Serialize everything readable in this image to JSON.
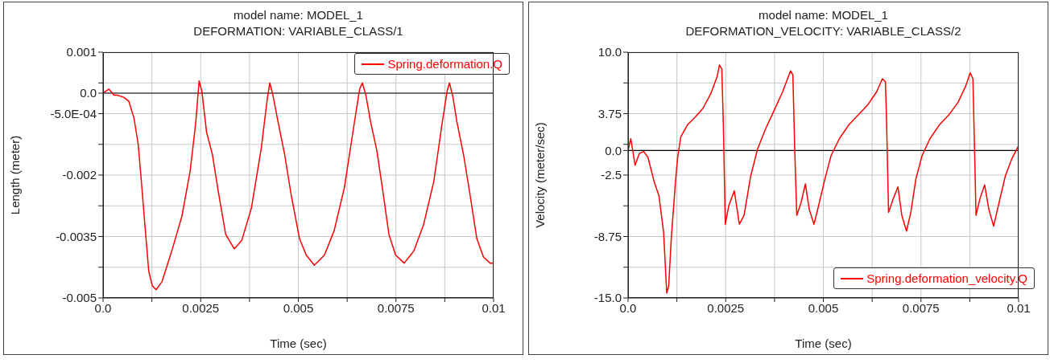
{
  "chart_data": [
    {
      "type": "line",
      "title": "model name: MODEL_1",
      "subtitle": "DEFORMATION: VARIABLE_CLASS/1",
      "xlabel": "Time (sec)",
      "ylabel": "Length (meter)",
      "xlim": [
        0,
        0.01
      ],
      "xticks": [
        {
          "value": 0,
          "label": "0.0"
        },
        {
          "value": 0.00125,
          "label": null
        },
        0.0025,
        {
          "value": 0.00375,
          "label": null
        },
        0.005,
        {
          "value": 0.00625,
          "label": null
        },
        0.0075,
        {
          "value": 0.00875,
          "label": null
        },
        0.01
      ],
      "ylim": [
        -0.005,
        0.001
      ],
      "yticks": [
        -0.005,
        {
          "value": -0.00425,
          "label": null
        },
        -0.0035,
        {
          "value": -0.00275,
          "label": null
        },
        -0.002,
        {
          "value": -0.00125,
          "label": null
        },
        {
          "value": -0.0005,
          "label": "-5.0E-04"
        },
        {
          "value": 0,
          "label": "0.0"
        },
        {
          "value": 0.00025,
          "label": null
        },
        0.001
      ],
      "grid": true,
      "legend": "top right",
      "marker": "none",
      "line_style": "solid",
      "ref_lines": [
        {
          "axis": "y",
          "value": 0,
          "color": "#000000"
        }
      ],
      "series": [
        {
          "name": "Spring.deformation.Q",
          "color": "#ff0000",
          "x": [
            0,
            0.00015,
            0.00028,
            0.00036,
            0.00053,
            0.00066,
            0.00079,
            0.0009,
            0.00098,
            0.00107,
            0.00117,
            0.00126,
            0.00136,
            0.00151,
            0.00176,
            0.00202,
            0.00223,
            0.00237,
            0.00246,
            0.00253,
            0.00265,
            0.0028,
            0.00295,
            0.00314,
            0.00336,
            0.00355,
            0.0038,
            0.00405,
            0.00421,
            0.00427,
            0.00435,
            0.00446,
            0.00465,
            0.00482,
            0.00503,
            0.0052,
            0.00541,
            0.00567,
            0.00592,
            0.00618,
            0.00643,
            0.00657,
            0.00664,
            0.00673,
            0.00685,
            0.00701,
            0.00715,
            0.00732,
            0.00749,
            0.00771,
            0.00796,
            0.00821,
            0.00847,
            0.00868,
            0.00881,
            0.00887,
            0.00896,
            0.00906,
            0.00923,
            0.0094,
            0.00957,
            0.00974,
            0.00991,
            0.01
          ],
          "values": [
            0,
            0.0001,
            -5e-05,
            -5e-05,
            -0.0001,
            -0.0002,
            -0.0006,
            -0.00125,
            -0.00215,
            -0.0032,
            -0.00435,
            -0.0047,
            -0.0048,
            -0.0046,
            -0.00385,
            -0.003,
            -0.0019,
            -0.00075,
            0.0003,
            5e-05,
            -0.00095,
            -0.0015,
            -0.0024,
            -0.00345,
            -0.0038,
            -0.0036,
            -0.0028,
            -0.00135,
            -0.0001,
            0.00025,
            -5e-05,
            -0.0006,
            -0.0015,
            -0.0025,
            -0.00355,
            -0.00395,
            -0.0042,
            -0.00395,
            -0.00335,
            -0.0023,
            -0.00075,
            0.0001,
            0.00025,
            -5e-05,
            -0.0007,
            -0.0014,
            -0.0023,
            -0.00345,
            -0.00395,
            -0.00415,
            -0.00385,
            -0.0032,
            -0.00215,
            -0.00075,
            5e-05,
            0.00025,
            -0.0001,
            -0.0007,
            -0.0015,
            -0.0025,
            -0.00355,
            -0.004,
            -0.00415,
            -0.00415
          ]
        }
      ]
    },
    {
      "type": "line",
      "title": "model name: MODEL_1",
      "subtitle": "DEFORMATION_VELOCITY: VARIABLE_CLASS/2",
      "xlabel": "Time (sec)",
      "ylabel": "Velocity (meter/sec)",
      "xlim": [
        0,
        0.01
      ],
      "xticks": [
        {
          "value": 0,
          "label": "0.0"
        },
        {
          "value": 0.00125,
          "label": null
        },
        0.0025,
        {
          "value": 0.00375,
          "label": null
        },
        0.005,
        {
          "value": 0.00625,
          "label": null
        },
        0.0075,
        {
          "value": 0.00875,
          "label": null
        },
        0.01
      ],
      "ylim": [
        -15,
        10
      ],
      "yticks": [
        {
          "value": -15,
          "label": "-15.0"
        },
        {
          "value": -11.875,
          "label": null
        },
        -8.75,
        {
          "value": -5.625,
          "label": null
        },
        -2.5,
        {
          "value": 0,
          "label": "0.0"
        },
        {
          "value": 0.625,
          "label": null
        },
        3.75,
        {
          "value": 6.875,
          "label": null
        },
        {
          "value": 10,
          "label": "10.0"
        }
      ],
      "grid": true,
      "legend": "bottom right",
      "marker": "none",
      "line_style": "solid",
      "ref_lines": [
        {
          "axis": "y",
          "value": 0,
          "color": "#000000"
        }
      ],
      "series": [
        {
          "name": "Spring.deformation_velocity.Q",
          "color": "#ff0000",
          "x": [
            0,
            7e-05,
            0.00018,
            0.00029,
            0.0004,
            0.00051,
            0.00067,
            0.00079,
            0.00091,
            0.00099,
            0.00104,
            0.00111,
            0.00122,
            0.00127,
            0.00135,
            0.00152,
            0.00172,
            0.00192,
            0.00212,
            0.00228,
            0.00234,
            0.0024,
            0.00244,
            0.00249,
            0.00258,
            0.00272,
            0.00285,
            0.00297,
            0.00314,
            0.00332,
            0.00352,
            0.00372,
            0.00396,
            0.00416,
            0.00422,
            0.00427,
            0.00432,
            0.00443,
            0.00454,
            0.00464,
            0.00476,
            0.00488,
            0.00504,
            0.0052,
            0.00541,
            0.00565,
            0.00589,
            0.00613,
            0.00637,
            0.00651,
            0.00659,
            0.00662,
            0.00667,
            0.00679,
            0.00691,
            0.00701,
            0.00713,
            0.00724,
            0.00737,
            0.00753,
            0.00773,
            0.00797,
            0.00821,
            0.00845,
            0.00865,
            0.00876,
            0.00883,
            0.00887,
            0.00891,
            0.00901,
            0.00913,
            0.00924,
            0.00936,
            0.0095,
            0.00966,
            0.00982,
            0.01
          ],
          "values": [
            0,
            1.2,
            -1.5,
            -0.3,
            -0.1,
            -0.7,
            -3.2,
            -4.6,
            -8.3,
            -14.5,
            -13.8,
            -8.7,
            -2.9,
            -0.7,
            1.4,
            2.6,
            3.4,
            4.3,
            5.8,
            7.5,
            8.7,
            8.3,
            2.6,
            -7.5,
            -5.6,
            -4.1,
            -7.5,
            -6.6,
            -2.6,
            0.2,
            2.2,
            3.9,
            6,
            8.1,
            7.7,
            -0.2,
            -6.6,
            -5.3,
            -3.4,
            -6,
            -7.5,
            -5.6,
            -2.9,
            -0.5,
            1.2,
            2.6,
            3.6,
            4.6,
            6,
            7.3,
            7,
            2.9,
            -6.3,
            -4.9,
            -3.7,
            -6.6,
            -8.2,
            -6.3,
            -2.9,
            -0.5,
            1.2,
            2.6,
            3.6,
            4.9,
            6.6,
            7.9,
            7.3,
            0.5,
            -6.6,
            -4.9,
            -3.5,
            -6,
            -7.7,
            -5.3,
            -2.6,
            -0.9,
            0.5
          ]
        }
      ]
    }
  ]
}
